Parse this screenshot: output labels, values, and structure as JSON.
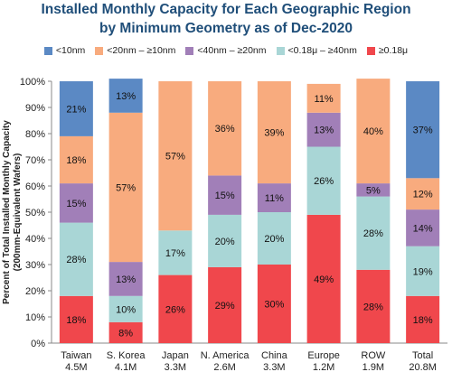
{
  "title_lines": [
    "Installed Monthly Capacity for Each Geographic Region",
    "by Minimum Geometry as of Dec-2020"
  ],
  "ylabel_lines": [
    "Percent of Total Installed Monthly Capacity",
    "(200mm-Equivalent Wafers)"
  ],
  "chart_data": {
    "type": "bar",
    "stacked": true,
    "title": "Installed Monthly Capacity for Each Geographic Region by Minimum Geometry as of Dec-2020",
    "ylabel": "Percent of Total Installed Monthly Capacity (200mm-Equivalent Wafers)",
    "ylim": [
      0,
      100
    ],
    "yticks": [
      "0%",
      "10%",
      "20%",
      "30%",
      "40%",
      "50%",
      "60%",
      "70%",
      "80%",
      "90%",
      "100%"
    ],
    "grid": false,
    "legend_position": "top",
    "categories": [
      "Taiwan",
      "S. Korea",
      "Japan",
      "N. America",
      "China",
      "Europe",
      "ROW",
      "Total"
    ],
    "category_sublabels": [
      "4.5M",
      "4.1M",
      "3.3M",
      "2.6M",
      "3.3M",
      "1.2M",
      "1.9M",
      "20.8M"
    ],
    "series": [
      {
        "name": "≥0.18μ",
        "color": "#f0474c",
        "values": [
          18,
          8,
          26,
          29,
          30,
          49,
          28,
          18
        ],
        "labels": [
          "18%",
          "8%",
          "26%",
          "29%",
          "30%",
          "49%",
          "28%",
          "18%"
        ]
      },
      {
        "name": "<0.18μ – ≥40nm",
        "color": "#a9d6d6",
        "values": [
          28,
          10,
          17,
          20,
          20,
          26,
          28,
          19
        ],
        "labels": [
          "28%",
          "10%",
          "17%",
          "20%",
          "20%",
          "26%",
          "28%",
          "19%"
        ]
      },
      {
        "name": "<40nm – ≥20nm",
        "color": "#a17fb8",
        "values": [
          15,
          13,
          0,
          15,
          11,
          13,
          5,
          14
        ],
        "labels": [
          "15%",
          "13%",
          "",
          "15%",
          "11%",
          "13%",
          "5%",
          "14%"
        ]
      },
      {
        "name": "<20nm – ≥10nm",
        "color": "#f8ab7e",
        "values": [
          18,
          57,
          57,
          36,
          39,
          11,
          40,
          12
        ],
        "labels": [
          "18%",
          "57%",
          "57%",
          "36%",
          "39%",
          "11%",
          "40%",
          "12%"
        ]
      },
      {
        "name": "<10nm",
        "color": "#5b89c4",
        "values": [
          21,
          13,
          0,
          0,
          0,
          0,
          0,
          37
        ],
        "labels": [
          "21%",
          "13%",
          "",
          "",
          "",
          "",
          "",
          "37%"
        ]
      }
    ],
    "legend_order": [
      "<10nm",
      "<20nm – ≥10nm",
      "<40nm – ≥20nm",
      "<0.18μ – ≥40nm",
      "≥0.18μ"
    ]
  }
}
